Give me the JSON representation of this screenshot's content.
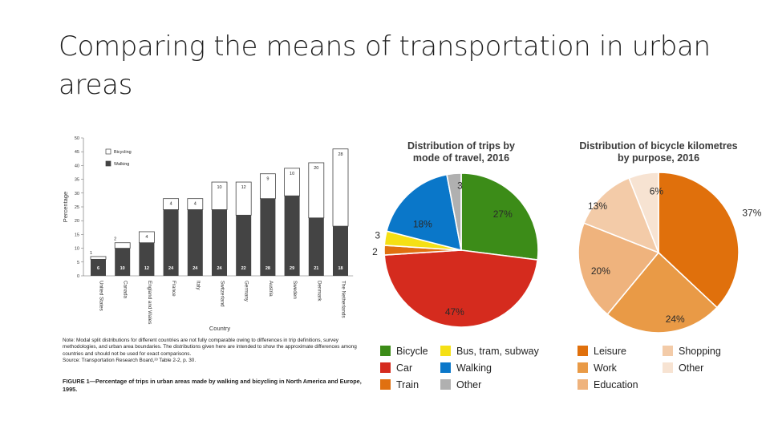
{
  "slide": {
    "title": "Comparing the means of transportation in urban areas"
  },
  "chart_data": [
    {
      "type": "bar",
      "stacked": true,
      "title": "",
      "xlabel": "Country",
      "ylabel": "Percentage",
      "ylim": [
        0,
        50
      ],
      "yticks": [
        0,
        5,
        10,
        15,
        20,
        25,
        30,
        35,
        40,
        45,
        50
      ],
      "categories": [
        "United States",
        "Canada",
        "England and Wales",
        "France",
        "Italy",
        "Switzerland",
        "Germany",
        "Austria",
        "Sweden",
        "Denmark",
        "The Netherlands"
      ],
      "series": [
        {
          "name": "Walking",
          "color": "#444444",
          "values": [
            6,
            10,
            12,
            24,
            24,
            24,
            22,
            28,
            29,
            21,
            18
          ]
        },
        {
          "name": "Bicycling",
          "color": "#ffffff",
          "values": [
            1,
            2,
            4,
            4,
            4,
            10,
            12,
            9,
            10,
            20,
            28
          ]
        }
      ],
      "legend": "top-left",
      "note": "Note: Modal split distributions for different countries are not fully comparable owing to differences in trip definitions, survey methodologies, and urban area boundaries. The distributions given here are intended to show the approximate differences among countries and should not be used for exact comparisons.",
      "source": "Source: Transportation Research Board,²³ Table 2-2, p. 30.",
      "caption": "FIGURE 1—Percentage of trips in urban areas made by walking and bicycling in North America and Europe, 1995."
    },
    {
      "type": "pie",
      "title": "Distribution of trips by mode of travel, 2016",
      "slices": [
        {
          "label": "Bicycle",
          "value": 27,
          "display": "27%",
          "color": "#3c8c18"
        },
        {
          "label": "Car",
          "value": 47,
          "display": "47%",
          "color": "#d52b1e"
        },
        {
          "label": "Train",
          "value": 2,
          "display": "2",
          "color": "#e07010"
        },
        {
          "label": "Bus, tram, subway",
          "value": 3,
          "display": "3",
          "color": "#f5e015"
        },
        {
          "label": "Walking",
          "value": 18,
          "display": "18%",
          "color": "#0a77c9"
        },
        {
          "label": "Other",
          "value": 3,
          "display": "3",
          "color": "#b0b0b0"
        }
      ],
      "legend": "bottom"
    },
    {
      "type": "pie",
      "title": "Distribution of bicycle kilometres by purpose, 2016",
      "slices": [
        {
          "label": "Leisure",
          "value": 37,
          "display": "37%",
          "color": "#e0700c"
        },
        {
          "label": "Work",
          "value": 24,
          "display": "24%",
          "color": "#e99a46"
        },
        {
          "label": "Education",
          "value": 20,
          "display": "20%",
          "color": "#efb37d"
        },
        {
          "label": "Shopping",
          "value": 13,
          "display": "13%",
          "color": "#f3cba8"
        },
        {
          "label": "Other",
          "value": 6,
          "display": "6%",
          "color": "#f7e3d2"
        }
      ],
      "legend": "bottom"
    }
  ]
}
